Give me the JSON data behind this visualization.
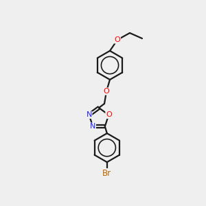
{
  "bg_color": "#efefef",
  "bond_color": "#1a1a1a",
  "bond_width": 1.6,
  "atom_colors": {
    "O": "#ff0000",
    "N": "#2020ff",
    "Br": "#bb6600",
    "C": "#1a1a1a"
  },
  "font_size": 8.0,
  "ring_r": 21,
  "pent_r": 15
}
